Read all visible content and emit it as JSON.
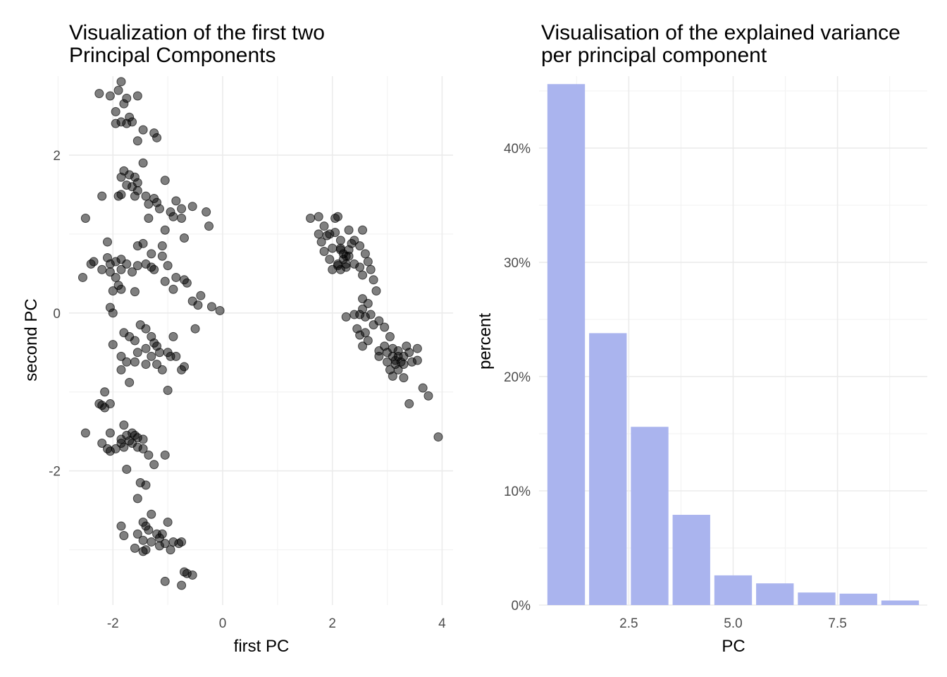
{
  "chart_data": [
    {
      "type": "scatter",
      "title_lines": [
        "Visualization of the first two",
        "Principal Components"
      ],
      "xlabel": "first PC",
      "ylabel": "second PC",
      "xlim": [
        -2.8,
        4.2
      ],
      "ylim": [
        -3.7,
        3.0
      ],
      "xticks": [
        -2,
        0,
        2,
        4
      ],
      "xtick_labels": [
        "-2",
        "0",
        "2",
        "4"
      ],
      "yticks": [
        -2,
        0,
        2
      ],
      "ytick_labels": [
        "-2",
        "0",
        "2"
      ],
      "grid": true,
      "point_color": "#000000",
      "point_alpha": 0.5,
      "points": [
        [
          -1.85,
          2.93
        ],
        [
          -2.05,
          2.75
        ],
        [
          -1.9,
          2.82
        ],
        [
          -1.75,
          2.72
        ],
        [
          -1.55,
          2.75
        ],
        [
          -1.8,
          2.65
        ],
        [
          -1.95,
          2.55
        ],
        [
          -1.7,
          2.48
        ],
        [
          -1.85,
          2.42
        ],
        [
          -1.95,
          2.4
        ],
        [
          -1.75,
          2.4
        ],
        [
          -1.65,
          2.42
        ],
        [
          -1.45,
          2.32
        ],
        [
          -1.25,
          2.28
        ],
        [
          -1.2,
          2.22
        ],
        [
          -1.55,
          2.18
        ],
        [
          -2.25,
          2.78
        ],
        [
          -1.45,
          1.9
        ],
        [
          -1.8,
          1.8
        ],
        [
          -1.85,
          1.72
        ],
        [
          -1.7,
          1.75
        ],
        [
          -1.6,
          1.72
        ],
        [
          -1.55,
          1.65
        ],
        [
          -1.75,
          1.62
        ],
        [
          -1.55,
          1.55
        ],
        [
          -1.65,
          1.6
        ],
        [
          -1.9,
          1.48
        ],
        [
          -1.85,
          1.5
        ],
        [
          -1.6,
          1.48
        ],
        [
          -1.4,
          1.48
        ],
        [
          -1.25,
          1.45
        ],
        [
          -1.05,
          1.68
        ],
        [
          -1.35,
          1.38
        ],
        [
          -1.2,
          1.4
        ],
        [
          -0.85,
          1.42
        ],
        [
          -0.75,
          1.32
        ],
        [
          -0.55,
          1.35
        ],
        [
          -0.3,
          1.28
        ],
        [
          -0.95,
          1.28
        ],
        [
          -1.15,
          1.32
        ],
        [
          -1.35,
          1.2
        ],
        [
          -0.9,
          1.22
        ],
        [
          -0.75,
          1.2
        ],
        [
          -1.05,
          1.05
        ],
        [
          -0.25,
          1.1
        ],
        [
          -0.7,
          0.95
        ],
        [
          -2.2,
          1.48
        ],
        [
          -2.5,
          1.2
        ],
        [
          -2.1,
          0.9
        ],
        [
          -1.45,
          0.88
        ],
        [
          -1.55,
          0.85
        ],
        [
          -1.1,
          0.85
        ],
        [
          -1.3,
          0.75
        ],
        [
          -1.1,
          0.72
        ],
        [
          -2.35,
          0.65
        ],
        [
          -2.1,
          0.7
        ],
        [
          -1.95,
          0.65
        ],
        [
          -1.85,
          0.68
        ],
        [
          -1.75,
          0.62
        ],
        [
          -2.05,
          0.62
        ],
        [
          -1.55,
          0.6
        ],
        [
          -1.4,
          0.62
        ],
        [
          -1.3,
          0.58
        ],
        [
          -1.25,
          0.55
        ],
        [
          -1.0,
          0.6
        ],
        [
          -2.2,
          0.55
        ],
        [
          -2.05,
          0.52
        ],
        [
          -1.85,
          0.55
        ],
        [
          -1.65,
          0.52
        ],
        [
          -1.95,
          0.45
        ],
        [
          -1.9,
          0.35
        ],
        [
          -1.85,
          0.3
        ],
        [
          -2.0,
          0.28
        ],
        [
          -1.6,
          0.27
        ],
        [
          -1.05,
          0.4
        ],
        [
          -0.85,
          0.45
        ],
        [
          -0.7,
          0.42
        ],
        [
          -0.9,
          0.3
        ],
        [
          -0.65,
          0.38
        ],
        [
          -0.4,
          0.22
        ],
        [
          -0.55,
          0.15
        ],
        [
          -0.45,
          0.1
        ],
        [
          -0.2,
          0.08
        ],
        [
          -0.05,
          0.03
        ],
        [
          -2.55,
          0.45
        ],
        [
          -2.4,
          0.62
        ],
        [
          -2.05,
          0.07
        ],
        [
          -2.0,
          0.0
        ],
        [
          -1.5,
          -0.15
        ],
        [
          -1.4,
          -0.2
        ],
        [
          -1.8,
          -0.25
        ],
        [
          -1.7,
          -0.3
        ],
        [
          -1.6,
          -0.35
        ],
        [
          -1.3,
          -0.3
        ],
        [
          -1.25,
          -0.38
        ],
        [
          -1.2,
          -0.42
        ],
        [
          -1.4,
          -0.45
        ],
        [
          -1.15,
          -0.5
        ],
        [
          -1.0,
          -0.5
        ],
        [
          -0.85,
          -0.55
        ],
        [
          -1.3,
          -0.55
        ],
        [
          -1.55,
          -0.5
        ],
        [
          -1.85,
          -0.55
        ],
        [
          -1.75,
          -0.62
        ],
        [
          -1.4,
          -0.65
        ],
        [
          -1.2,
          -0.65
        ],
        [
          -1.1,
          -0.72
        ],
        [
          -0.7,
          -0.68
        ],
        [
          -0.9,
          -0.3
        ],
        [
          -0.5,
          -0.2
        ],
        [
          -1.0,
          -0.98
        ],
        [
          -2.0,
          -0.4
        ],
        [
          -1.7,
          -0.88
        ],
        [
          -1.85,
          -0.72
        ],
        [
          -1.6,
          -0.62
        ],
        [
          -0.75,
          -0.72
        ],
        [
          -0.95,
          -0.55
        ],
        [
          -2.15,
          -1.0
        ],
        [
          -2.2,
          -1.17
        ],
        [
          -2.25,
          -1.15
        ],
        [
          -2.15,
          -1.2
        ],
        [
          -2.05,
          -1.15
        ],
        [
          -2.5,
          -1.52
        ],
        [
          -2.05,
          -1.52
        ],
        [
          -2.1,
          -1.72
        ],
        [
          -2.05,
          -1.75
        ],
        [
          -1.8,
          -1.42
        ],
        [
          -1.75,
          -1.55
        ],
        [
          -1.6,
          -1.55
        ],
        [
          -1.55,
          -1.58
        ],
        [
          -1.45,
          -1.6
        ],
        [
          -1.85,
          -1.6
        ],
        [
          -1.8,
          -1.7
        ],
        [
          -1.65,
          -1.65
        ],
        [
          -1.55,
          -1.7
        ],
        [
          -1.45,
          -1.72
        ],
        [
          -1.65,
          -1.52
        ],
        [
          -1.7,
          -1.62
        ],
        [
          -1.35,
          -1.8
        ],
        [
          -1.05,
          -1.8
        ],
        [
          -1.25,
          -1.92
        ],
        [
          -1.75,
          -1.98
        ],
        [
          -1.5,
          -2.15
        ],
        [
          -1.4,
          -2.18
        ],
        [
          -1.55,
          -2.35
        ],
        [
          -2.2,
          -1.65
        ],
        [
          -1.85,
          -1.65
        ],
        [
          -1.95,
          -1.72
        ],
        [
          -1.85,
          -2.7
        ],
        [
          -1.8,
          -2.82
        ],
        [
          -1.45,
          -2.65
        ],
        [
          -1.4,
          -2.7
        ],
        [
          -1.35,
          -2.75
        ],
        [
          -1.2,
          -2.8
        ],
        [
          -1.1,
          -2.8
        ],
        [
          -1.55,
          -2.8
        ],
        [
          -1.45,
          -2.88
        ],
        [
          -1.3,
          -2.9
        ],
        [
          -1.15,
          -2.95
        ],
        [
          -1.05,
          -2.92
        ],
        [
          -1.0,
          -2.65
        ],
        [
          -0.9,
          -2.9
        ],
        [
          -0.8,
          -2.92
        ],
        [
          -0.75,
          -2.9
        ],
        [
          -1.6,
          -2.98
        ],
        [
          -1.4,
          -3.0
        ],
        [
          -1.45,
          -3.02
        ],
        [
          -1.05,
          -3.4
        ],
        [
          -0.7,
          -3.28
        ],
        [
          -0.65,
          -3.3
        ],
        [
          -0.55,
          -3.32
        ],
        [
          -0.75,
          -3.45
        ],
        [
          -1.3,
          -2.55
        ],
        [
          -1.15,
          -2.85
        ],
        [
          -0.95,
          -3.0
        ],
        [
          1.6,
          1.2
        ],
        [
          1.75,
          1.22
        ],
        [
          2.05,
          1.2
        ],
        [
          2.1,
          1.22
        ],
        [
          1.85,
          1.1
        ],
        [
          1.95,
          1.0
        ],
        [
          2.05,
          1.02
        ],
        [
          1.75,
          1.0
        ],
        [
          1.9,
          0.98
        ],
        [
          2.3,
          1.05
        ],
        [
          2.55,
          1.05
        ],
        [
          2.15,
          0.92
        ],
        [
          2.35,
          0.88
        ],
        [
          2.4,
          0.92
        ],
        [
          2.15,
          0.8
        ],
        [
          2.2,
          0.75
        ],
        [
          2.25,
          0.72
        ],
        [
          2.3,
          0.72
        ],
        [
          2.2,
          0.68
        ],
        [
          2.4,
          0.62
        ],
        [
          2.5,
          0.85
        ],
        [
          2.6,
          0.75
        ],
        [
          2.65,
          0.65
        ],
        [
          2.5,
          0.58
        ],
        [
          2.25,
          0.58
        ],
        [
          2.15,
          0.55
        ],
        [
          1.95,
          0.68
        ],
        [
          1.85,
          0.78
        ],
        [
          2.15,
          0.82
        ],
        [
          2.3,
          0.8
        ],
        [
          2.1,
          0.62
        ],
        [
          2.25,
          0.62
        ],
        [
          2.55,
          0.48
        ],
        [
          2.7,
          0.55
        ],
        [
          2.75,
          0.42
        ],
        [
          2.8,
          0.28
        ],
        [
          2.55,
          0.18
        ],
        [
          2.65,
          0.12
        ],
        [
          2.55,
          0.05
        ],
        [
          2.5,
          -0.02
        ],
        [
          2.6,
          -0.05
        ],
        [
          2.7,
          -0.02
        ],
        [
          2.25,
          -0.05
        ],
        [
          2.4,
          -0.02
        ],
        [
          2.45,
          -0.2
        ],
        [
          2.5,
          -0.28
        ],
        [
          2.6,
          -0.25
        ],
        [
          2.75,
          -0.15
        ],
        [
          2.65,
          -0.35
        ],
        [
          2.55,
          -0.42
        ],
        [
          2.85,
          -0.1
        ],
        [
          2.95,
          -0.18
        ],
        [
          3.05,
          -0.3
        ],
        [
          2.95,
          -0.42
        ],
        [
          2.85,
          -0.48
        ],
        [
          3.0,
          -0.5
        ],
        [
          3.1,
          -0.45
        ],
        [
          3.2,
          -0.48
        ],
        [
          3.3,
          -0.55
        ],
        [
          3.35,
          -0.42
        ],
        [
          3.4,
          -0.5
        ],
        [
          3.25,
          -0.62
        ],
        [
          3.15,
          -0.65
        ],
        [
          3.05,
          -0.72
        ],
        [
          3.0,
          -0.62
        ],
        [
          3.2,
          -0.72
        ],
        [
          3.1,
          -0.8
        ],
        [
          3.3,
          -0.82
        ],
        [
          3.45,
          -0.62
        ],
        [
          3.55,
          -0.45
        ],
        [
          3.55,
          -0.6
        ],
        [
          3.1,
          -0.55
        ],
        [
          3.2,
          -0.55
        ],
        [
          3.3,
          -0.65
        ],
        [
          3.65,
          -0.95
        ],
        [
          3.75,
          -1.05
        ],
        [
          3.4,
          -1.15
        ],
        [
          3.93,
          -1.57
        ],
        [
          2.0,
          0.55
        ],
        [
          2.1,
          0.6
        ],
        [
          1.8,
          0.9
        ],
        [
          2.0,
          0.82
        ],
        [
          2.85,
          -0.55
        ],
        [
          3.15,
          -0.6
        ]
      ]
    },
    {
      "type": "bar",
      "title_lines": [
        "Visualisation of the explained variance",
        "per principal component"
      ],
      "xlabel": "PC",
      "ylabel": "percent",
      "x": [
        1,
        2,
        3,
        4,
        5,
        6,
        7,
        8,
        9
      ],
      "values": [
        0.456,
        0.238,
        0.156,
        0.079,
        0.026,
        0.019,
        0.011,
        0.01,
        0.004
      ],
      "xlim": [
        0.35,
        9.65
      ],
      "ylim": [
        0,
        0.458
      ],
      "xticks": [
        2.5,
        5.0,
        7.5
      ],
      "xtick_labels": [
        "2.5",
        "5.0",
        "7.5"
      ],
      "yticks": [
        0,
        0.1,
        0.2,
        0.3,
        0.4
      ],
      "ytick_labels": [
        "0%",
        "10%",
        "20%",
        "30%",
        "40%"
      ],
      "grid": true,
      "bar_color": "#aab4ee"
    }
  ]
}
